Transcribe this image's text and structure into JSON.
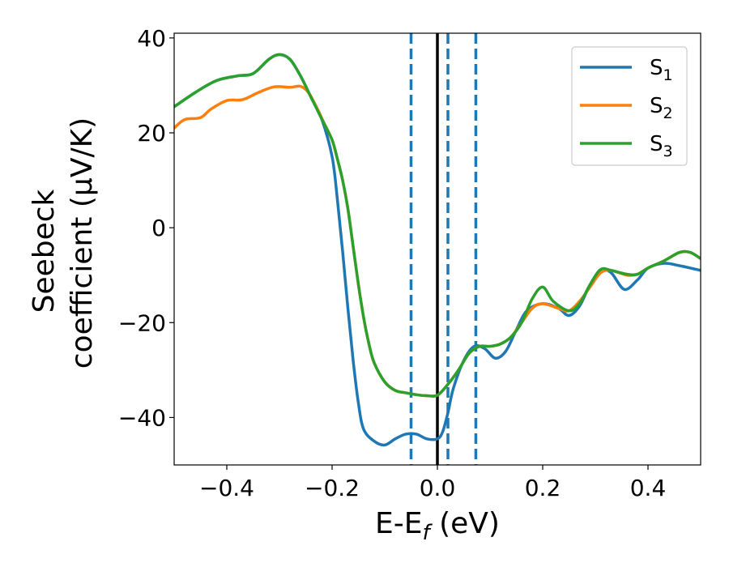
{
  "chart_data": {
    "type": "line",
    "xlabel": {
      "main": "E-E",
      "sub": "f",
      "unit": " (eV)"
    },
    "ylabel": {
      "line1": "Seebeck",
      "line2": "coefficient  (μV/K)"
    },
    "xlim": [
      -0.5,
      0.5
    ],
    "ylim": [
      -50,
      41
    ],
    "x_ticks": [
      {
        "value": -0.4,
        "label": "−0.4"
      },
      {
        "value": -0.2,
        "label": "−0.2"
      },
      {
        "value": 0.0,
        "label": "0.0"
      },
      {
        "value": 0.2,
        "label": "0.2"
      },
      {
        "value": 0.4,
        "label": "0.4"
      }
    ],
    "y_ticks": [
      {
        "value": 40,
        "label": "40"
      },
      {
        "value": 20,
        "label": "20"
      },
      {
        "value": 0,
        "label": "0"
      },
      {
        "value": -20,
        "label": "−20"
      },
      {
        "value": -40,
        "label": "−40"
      }
    ],
    "legend": {
      "placement": "top-right"
    },
    "vlines": [
      {
        "x": -0.05,
        "style": "dashed",
        "color": "#1f77b4"
      },
      {
        "x": 0.0,
        "style": "solid",
        "color": "#000000"
      },
      {
        "x": 0.02,
        "style": "dashed",
        "color": "#1f77b4"
      },
      {
        "x": 0.073,
        "style": "dashed",
        "color": "#1f77b4"
      }
    ],
    "series": [
      {
        "name": "S",
        "sub": "1",
        "color": "#1f77b4",
        "points": [
          [
            -0.5,
            25.5
          ],
          [
            -0.46,
            28.5
          ],
          [
            -0.42,
            31.0
          ],
          [
            -0.38,
            32.0
          ],
          [
            -0.35,
            32.5
          ],
          [
            -0.32,
            35.5
          ],
          [
            -0.3,
            36.5
          ],
          [
            -0.28,
            35.5
          ],
          [
            -0.26,
            32.0
          ],
          [
            -0.24,
            27.5
          ],
          [
            -0.22,
            23.0
          ],
          [
            -0.2,
            15.0
          ],
          [
            -0.19,
            6.0
          ],
          [
            -0.18,
            -5.0
          ],
          [
            -0.17,
            -17.0
          ],
          [
            -0.16,
            -28.0
          ],
          [
            -0.15,
            -37.0
          ],
          [
            -0.14,
            -42.5
          ],
          [
            -0.12,
            -45.0
          ],
          [
            -0.1,
            -45.8
          ],
          [
            -0.08,
            -44.5
          ],
          [
            -0.06,
            -43.5
          ],
          [
            -0.04,
            -43.5
          ],
          [
            -0.02,
            -44.5
          ],
          [
            0.0,
            -44.5
          ],
          [
            0.01,
            -43.0
          ],
          [
            0.02,
            -39.0
          ],
          [
            0.03,
            -34.0
          ],
          [
            0.05,
            -28.0
          ],
          [
            0.07,
            -25.0
          ],
          [
            0.09,
            -25.5
          ],
          [
            0.11,
            -27.5
          ],
          [
            0.13,
            -26.0
          ],
          [
            0.15,
            -21.5
          ],
          [
            0.17,
            -17.5
          ],
          [
            0.2,
            -16.0
          ],
          [
            0.23,
            -17.0
          ],
          [
            0.25,
            -18.5
          ],
          [
            0.27,
            -16.5
          ],
          [
            0.29,
            -12.0
          ],
          [
            0.31,
            -9.0
          ],
          [
            0.33,
            -9.5
          ],
          [
            0.355,
            -13.0
          ],
          [
            0.38,
            -11.0
          ],
          [
            0.4,
            -8.5
          ],
          [
            0.43,
            -7.5
          ],
          [
            0.46,
            -8.0
          ],
          [
            0.5,
            -9.0
          ]
        ]
      },
      {
        "name": "S",
        "sub": "2",
        "color": "#ff7f0e",
        "points": [
          [
            -0.5,
            21.0
          ],
          [
            -0.48,
            22.8
          ],
          [
            -0.45,
            23.2
          ],
          [
            -0.43,
            25.0
          ],
          [
            -0.4,
            26.8
          ],
          [
            -0.37,
            27.0
          ],
          [
            -0.34,
            28.5
          ],
          [
            -0.31,
            29.7
          ],
          [
            -0.28,
            29.6
          ],
          [
            -0.26,
            29.8
          ],
          [
            -0.245,
            28.5
          ],
          [
            -0.23,
            25.5
          ],
          [
            -0.215,
            22.0
          ],
          [
            -0.2,
            18.5
          ],
          [
            -0.19,
            14.5
          ],
          [
            -0.18,
            10.0
          ],
          [
            -0.17,
            4.0
          ],
          [
            -0.16,
            -4.0
          ],
          [
            -0.15,
            -12.0
          ],
          [
            -0.14,
            -19.0
          ],
          [
            -0.13,
            -24.5
          ],
          [
            -0.12,
            -28.5
          ],
          [
            -0.1,
            -32.5
          ],
          [
            -0.08,
            -34.3
          ],
          [
            -0.06,
            -34.8
          ],
          [
            -0.04,
            -35.2
          ],
          [
            -0.02,
            -35.4
          ],
          [
            0.0,
            -35.3
          ],
          [
            0.02,
            -33.0
          ],
          [
            0.04,
            -30.0
          ],
          [
            0.06,
            -26.5
          ],
          [
            0.08,
            -25.0
          ],
          [
            0.1,
            -25.0
          ],
          [
            0.12,
            -24.5
          ],
          [
            0.14,
            -23.0
          ],
          [
            0.16,
            -20.0
          ],
          [
            0.18,
            -17.0
          ],
          [
            0.2,
            -16.0
          ],
          [
            0.23,
            -17.0
          ],
          [
            0.25,
            -17.5
          ],
          [
            0.27,
            -15.5
          ],
          [
            0.29,
            -12.5
          ],
          [
            0.31,
            -9.5
          ],
          [
            0.33,
            -9.0
          ],
          [
            0.36,
            -10.0
          ],
          [
            0.38,
            -9.8
          ],
          [
            0.4,
            -8.5
          ],
          [
            0.43,
            -7.0
          ],
          [
            0.46,
            -5.2
          ],
          [
            0.48,
            -5.2
          ],
          [
            0.5,
            -6.5
          ]
        ]
      },
      {
        "name": "S",
        "sub": "3",
        "color": "#2ca02c",
        "points": [
          [
            -0.5,
            25.5
          ],
          [
            -0.46,
            28.5
          ],
          [
            -0.42,
            31.0
          ],
          [
            -0.38,
            32.0
          ],
          [
            -0.35,
            32.5
          ],
          [
            -0.32,
            35.5
          ],
          [
            -0.3,
            36.5
          ],
          [
            -0.28,
            35.5
          ],
          [
            -0.26,
            32.0
          ],
          [
            -0.24,
            27.5
          ],
          [
            -0.22,
            23.0
          ],
          [
            -0.2,
            18.5
          ],
          [
            -0.19,
            14.5
          ],
          [
            -0.18,
            10.0
          ],
          [
            -0.17,
            4.0
          ],
          [
            -0.16,
            -4.0
          ],
          [
            -0.15,
            -12.0
          ],
          [
            -0.14,
            -19.0
          ],
          [
            -0.13,
            -24.5
          ],
          [
            -0.12,
            -28.5
          ],
          [
            -0.1,
            -32.5
          ],
          [
            -0.08,
            -34.3
          ],
          [
            -0.06,
            -34.8
          ],
          [
            -0.04,
            -35.2
          ],
          [
            -0.02,
            -35.4
          ],
          [
            0.0,
            -35.3
          ],
          [
            0.02,
            -33.0
          ],
          [
            0.04,
            -30.0
          ],
          [
            0.06,
            -26.5
          ],
          [
            0.08,
            -25.0
          ],
          [
            0.1,
            -25.0
          ],
          [
            0.12,
            -24.5
          ],
          [
            0.14,
            -23.0
          ],
          [
            0.16,
            -20.0
          ],
          [
            0.18,
            -15.0
          ],
          [
            0.2,
            -12.5
          ],
          [
            0.22,
            -15.5
          ],
          [
            0.25,
            -17.5
          ],
          [
            0.27,
            -16.0
          ],
          [
            0.29,
            -12.0
          ],
          [
            0.31,
            -8.8
          ],
          [
            0.33,
            -9.0
          ],
          [
            0.36,
            -9.8
          ],
          [
            0.38,
            -9.8
          ],
          [
            0.4,
            -8.5
          ],
          [
            0.43,
            -7.0
          ],
          [
            0.46,
            -5.2
          ],
          [
            0.48,
            -5.2
          ],
          [
            0.5,
            -6.5
          ]
        ]
      }
    ]
  }
}
